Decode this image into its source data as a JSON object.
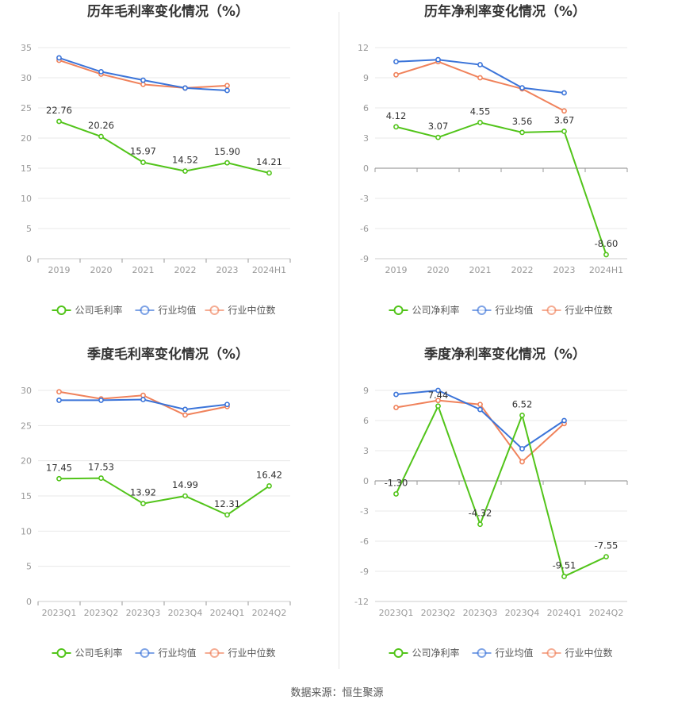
{
  "colors": {
    "company": "#52c41a",
    "avg": "#3b74d9",
    "median": "#f0825b",
    "grid": "#e8e8e8",
    "axis": "#999999"
  },
  "legend": {
    "company_gross": "公司毛利率",
    "company_net": "公司净利率",
    "avg": "行业均值",
    "median": "行业中位数"
  },
  "source": "数据来源：恒生聚源",
  "chart_data": [
    {
      "type": "line",
      "title": "历年毛利率变化情况（%）",
      "categories": [
        "2019",
        "2020",
        "2021",
        "2022",
        "2023",
        "2024H1"
      ],
      "ylim": [
        0,
        35
      ],
      "yticks": [
        0,
        5,
        10,
        15,
        20,
        25,
        30,
        35
      ],
      "grid": true,
      "legend_position": "bottom",
      "series": [
        {
          "name": "公司毛利率",
          "role": "company",
          "values": [
            22.76,
            20.26,
            15.97,
            14.52,
            15.9,
            14.21
          ],
          "labels": [
            "22.76",
            "20.26",
            "15.97",
            "14.52",
            "15.90",
            "14.21"
          ]
        },
        {
          "name": "行业均值",
          "role": "avg",
          "values": [
            33.3,
            31.0,
            29.6,
            28.3,
            27.9,
            null
          ]
        },
        {
          "name": "行业中位数",
          "role": "median",
          "values": [
            32.9,
            30.6,
            28.9,
            28.3,
            28.7,
            null
          ]
        }
      ]
    },
    {
      "type": "line",
      "title": "历年净利率变化情况（%）",
      "categories": [
        "2019",
        "2020",
        "2021",
        "2022",
        "2023",
        "2024H1"
      ],
      "ylim": [
        -9,
        12
      ],
      "yticks": [
        -9,
        -6,
        -3,
        0,
        3,
        6,
        9,
        12
      ],
      "grid": true,
      "legend_position": "bottom",
      "series": [
        {
          "name": "公司净利率",
          "role": "company",
          "values": [
            4.12,
            3.07,
            4.55,
            3.56,
            3.67,
            -8.6
          ],
          "labels": [
            "4.12",
            "3.07",
            "4.55",
            "3.56",
            "3.67",
            "-8.60"
          ]
        },
        {
          "name": "行业均值",
          "role": "avg",
          "values": [
            10.6,
            10.8,
            10.3,
            8.0,
            7.5,
            null
          ]
        },
        {
          "name": "行业中位数",
          "role": "median",
          "values": [
            9.3,
            10.6,
            9.0,
            7.9,
            5.7,
            null
          ]
        }
      ]
    },
    {
      "type": "line",
      "title": "季度毛利率变化情况（%）",
      "categories": [
        "2023Q1",
        "2023Q2",
        "2023Q3",
        "2023Q4",
        "2024Q1",
        "2024Q2"
      ],
      "ylim": [
        0,
        30
      ],
      "yticks": [
        0,
        5,
        10,
        15,
        20,
        25,
        30
      ],
      "grid": true,
      "legend_position": "bottom",
      "series": [
        {
          "name": "公司毛利率",
          "role": "company",
          "values": [
            17.45,
            17.53,
            13.92,
            14.99,
            12.31,
            16.42
          ],
          "labels": [
            "17.45",
            "17.53",
            "13.92",
            "14.99",
            "12.31",
            "16.42"
          ]
        },
        {
          "name": "行业均值",
          "role": "avg",
          "values": [
            28.6,
            28.6,
            28.7,
            27.3,
            28.0,
            null
          ]
        },
        {
          "name": "行业中位数",
          "role": "median",
          "values": [
            29.8,
            28.8,
            29.3,
            26.5,
            27.7,
            null
          ]
        }
      ]
    },
    {
      "type": "line",
      "title": "季度净利率变化情况（%）",
      "categories": [
        "2023Q1",
        "2023Q2",
        "2023Q3",
        "2023Q4",
        "2024Q1",
        "2024Q2"
      ],
      "ylim": [
        -12,
        9
      ],
      "yticks": [
        -12,
        -9,
        -6,
        -3,
        0,
        3,
        6,
        9
      ],
      "grid": true,
      "legend_position": "bottom",
      "series": [
        {
          "name": "公司净利率",
          "role": "company",
          "values": [
            -1.3,
            7.44,
            -4.32,
            6.52,
            -9.51,
            -7.55
          ],
          "labels": [
            "-1.30",
            "7.44",
            "-4.32",
            "6.52",
            "-9.51",
            "-7.55"
          ]
        },
        {
          "name": "行业均值",
          "role": "avg",
          "values": [
            8.6,
            9.0,
            7.1,
            3.2,
            6.0,
            null
          ]
        },
        {
          "name": "行业中位数",
          "role": "median",
          "values": [
            7.3,
            8.0,
            7.6,
            1.9,
            5.7,
            null
          ]
        }
      ]
    }
  ]
}
